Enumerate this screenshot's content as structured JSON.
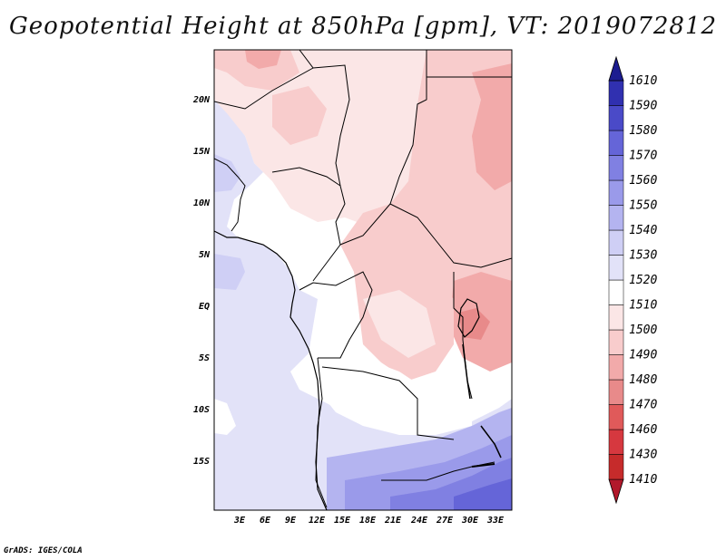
{
  "title": "Geopotential Height at 850hPa [gpm], VT: 2019072812",
  "footer": "GrADS: IGES/COLA",
  "map": {
    "lat_labels": [
      "20N",
      "15N",
      "10N",
      "5N",
      "EQ",
      "5S",
      "10S",
      "15S"
    ],
    "lon_labels": [
      "3E",
      "6E",
      "9E",
      "12E",
      "15E",
      "18E",
      "21E",
      "24E",
      "27E",
      "30E",
      "33E"
    ]
  },
  "colorbar": {
    "levels": [
      1410,
      1430,
      1460,
      1470,
      1480,
      1490,
      1500,
      1510,
      1520,
      1530,
      1540,
      1550,
      1560,
      1570,
      1580,
      1590,
      1610
    ],
    "colors": [
      "#b2182b",
      "#c62b2b",
      "#d6383f",
      "#e05a5a",
      "#e88a8a",
      "#f2aaaa",
      "#f8cccc",
      "#fbe6e6",
      "#ffffff",
      "#e2e2f8",
      "#cfcff5",
      "#b4b4f0",
      "#9a9aea",
      "#8080e2",
      "#6565d8",
      "#4a4ac8",
      "#3030b0",
      "#1c1c90"
    ],
    "labels": [
      "1410",
      "1430",
      "1460",
      "1470",
      "1480",
      "1490",
      "1500",
      "1510",
      "1520",
      "1530",
      "1540",
      "1550",
      "1560",
      "1570",
      "1580",
      "1590",
      "1610"
    ]
  }
}
